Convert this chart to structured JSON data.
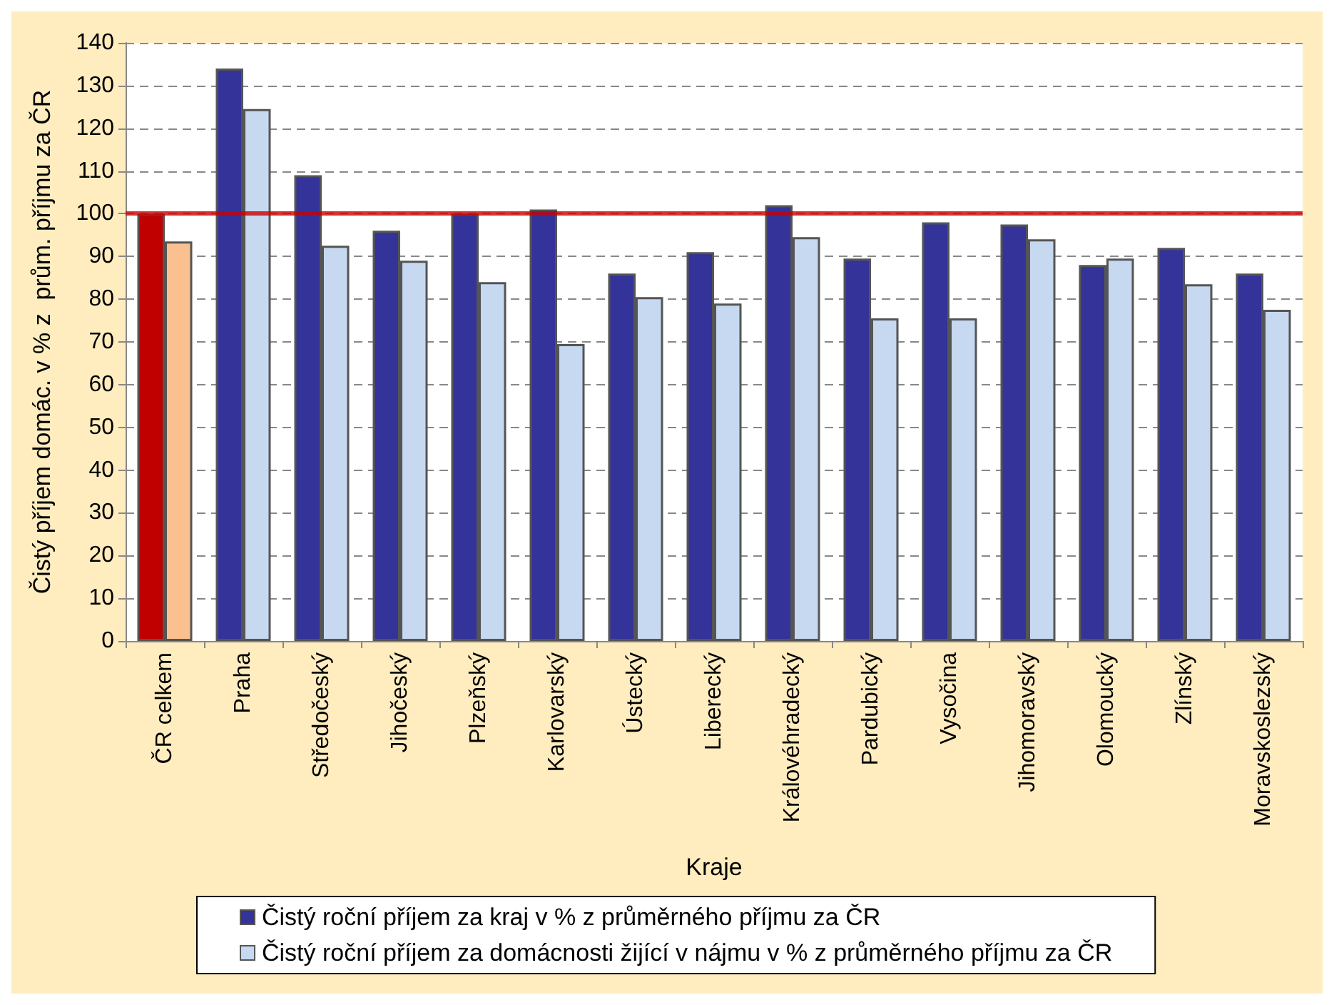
{
  "chart_data": {
    "type": "bar",
    "xlabel": "Kraje",
    "ylabel": "Čistý příjem domác. v % z  prům. příjmu za ČR",
    "categories": [
      "ČR celkem",
      "Praha",
      "Středočeský",
      "Jihočeský",
      "Plzeňský",
      "Karlovarský",
      "Ústecký",
      "Liberecký",
      "Královéhradecký",
      "Pardubický",
      "Vysočina",
      "Jihomoravský",
      "Olomoucký",
      "Zlínský",
      "Moravskoslezský"
    ],
    "series": [
      {
        "name": "Čistý roční příjem za kraj v % z průměrného příjmu za ČR",
        "color": "#333399",
        "colors": [
          "#c00000",
          "#333399",
          "#333399",
          "#333399",
          "#333399",
          "#333399",
          "#333399",
          "#333399",
          "#333399",
          "#333399",
          "#333399",
          "#333399",
          "#333399",
          "#333399",
          "#333399"
        ],
        "values": [
          100,
          134,
          109,
          96,
          100,
          101,
          86,
          91,
          102,
          89.5,
          98,
          97.5,
          88,
          92,
          86
        ]
      },
      {
        "name": "Čistý roční příjem za domácnosti žijící v nájmu v % z průměrného příjmu za ČR",
        "color": "#c6d9f0",
        "colors": [
          "#fac090",
          "#c6d9f0",
          "#c6d9f0",
          "#c6d9f0",
          "#c6d9f0",
          "#c6d9f0",
          "#c6d9f0",
          "#c6d9f0",
          "#c6d9f0",
          "#c6d9f0",
          "#c6d9f0",
          "#c6d9f0",
          "#c6d9f0",
          "#c6d9f0",
          "#c6d9f0"
        ],
        "values": [
          93.5,
          124.5,
          92.5,
          89,
          84,
          69.5,
          80.5,
          79,
          94.5,
          75.5,
          75.5,
          94,
          89.5,
          83.5,
          77.5
        ]
      }
    ],
    "ylim": [
      0,
      140
    ],
    "yticks": [
      0,
      10,
      20,
      30,
      40,
      50,
      60,
      70,
      80,
      90,
      100,
      110,
      120,
      130,
      140
    ],
    "ref_lines": [
      {
        "axis": "y",
        "value": 100,
        "color": "#cc0000",
        "line_style": "solid"
      }
    ],
    "grid": "y",
    "legend": "bottom"
  }
}
